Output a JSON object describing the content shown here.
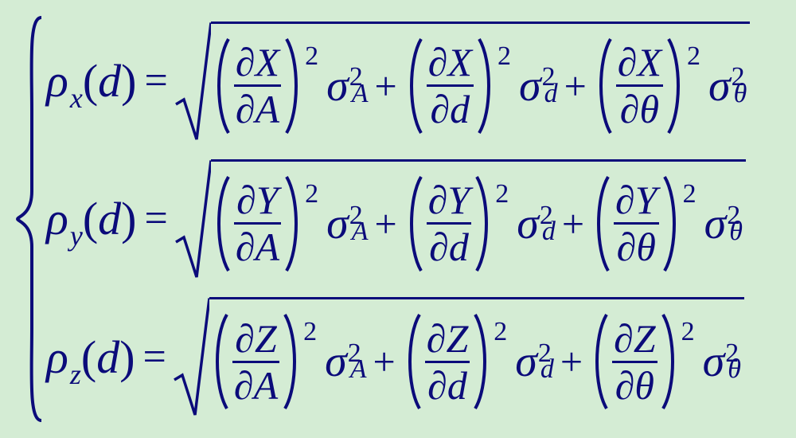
{
  "colors": {
    "background": "#d4ecd4",
    "text": "#0b0b7a",
    "bar": "#0b0b7a"
  },
  "font": {
    "family": "Times New Roman",
    "style": "italic",
    "base_size_pt": 58
  },
  "symbols": {
    "rho": "ρ",
    "sigma": "σ",
    "partial": "∂",
    "theta": "θ",
    "eq": "=",
    "plus": "+",
    "two": "2"
  },
  "lhs_arg": "d",
  "equations": [
    {
      "sub": "x",
      "upper": "X",
      "terms": [
        {
          "denom_var": "A",
          "sigma_sub": "A"
        },
        {
          "denom_var": "d",
          "sigma_sub": "d"
        },
        {
          "denom_var": "θ",
          "sigma_sub": "θ"
        }
      ]
    },
    {
      "sub": "y",
      "upper": "Y",
      "terms": [
        {
          "denom_var": "A",
          "sigma_sub": "A"
        },
        {
          "denom_var": "d",
          "sigma_sub": "d"
        },
        {
          "denom_var": "θ",
          "sigma_sub": "θ"
        }
      ]
    },
    {
      "sub": "z",
      "upper": "Z",
      "terms": [
        {
          "denom_var": "A",
          "sigma_sub": "A"
        },
        {
          "denom_var": "d",
          "sigma_sub": "d"
        },
        {
          "denom_var": "θ",
          "sigma_sub": "θ"
        }
      ]
    }
  ]
}
